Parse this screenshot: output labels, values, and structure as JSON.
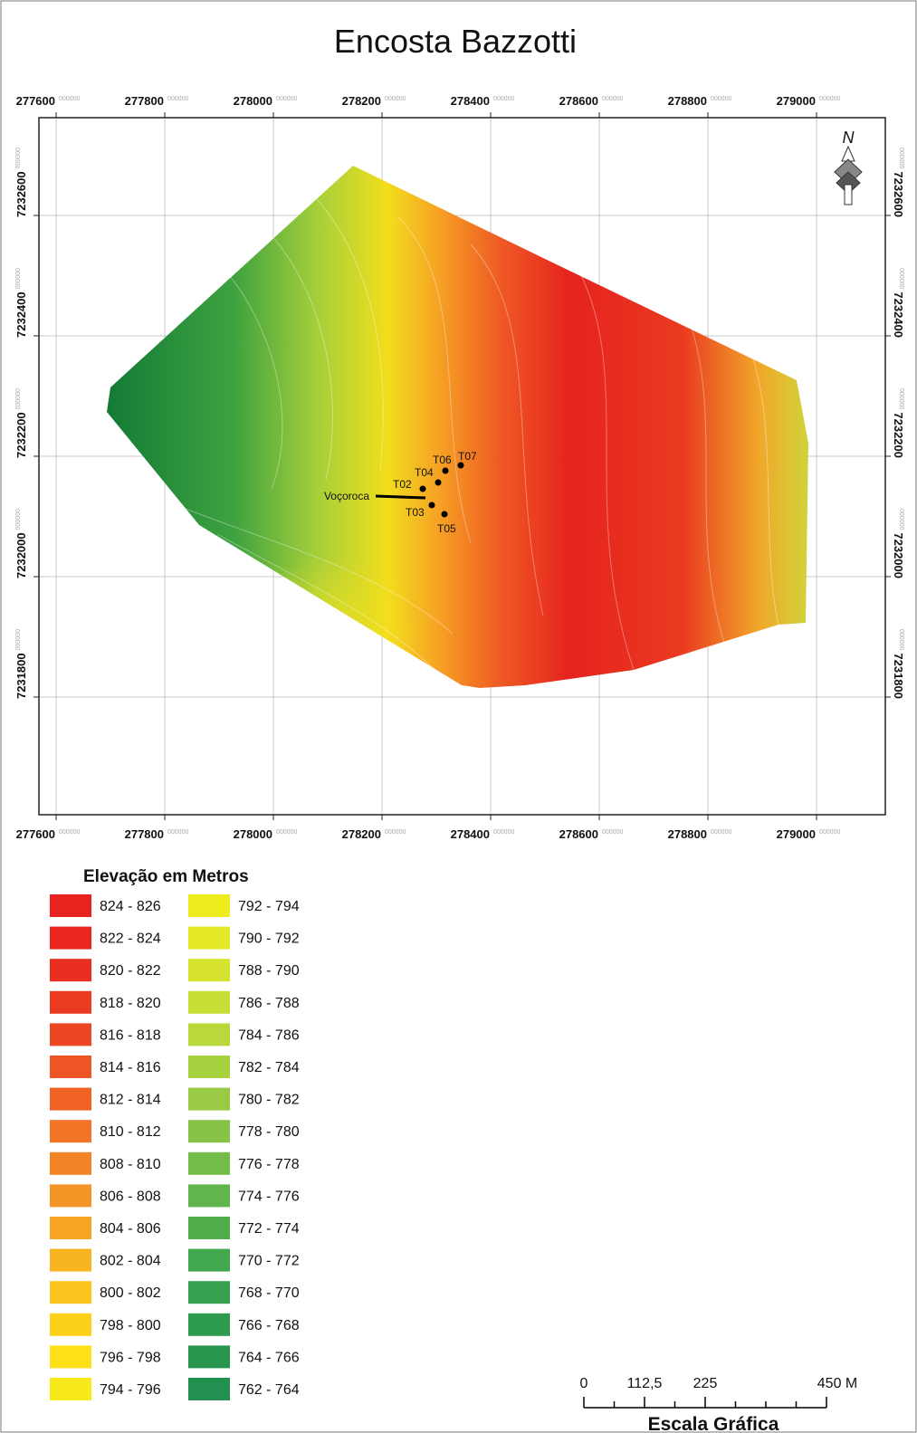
{
  "title": "Encosta Bazzotti",
  "map": {
    "x_ticks": [
      {
        "label": "277600",
        "suffix": "000000"
      },
      {
        "label": "277800",
        "suffix": "000000"
      },
      {
        "label": "278000",
        "suffix": "000000"
      },
      {
        "label": "278200",
        "suffix": "000000"
      },
      {
        "label": "278400",
        "suffix": "000000"
      },
      {
        "label": "278600",
        "suffix": "000000"
      },
      {
        "label": "278800",
        "suffix": "000000"
      },
      {
        "label": "279000",
        "suffix": "000000"
      }
    ],
    "y_ticks": [
      {
        "label": "7232600",
        "suffix": "000000"
      },
      {
        "label": "7232400",
        "suffix": "000000"
      },
      {
        "label": "7232200",
        "suffix": "000000"
      },
      {
        "label": "7232000",
        "suffix": "000000"
      },
      {
        "label": "7231800",
        "suffix": "000000"
      }
    ],
    "points": [
      {
        "label": "T06"
      },
      {
        "label": "T07"
      },
      {
        "label": "T04"
      },
      {
        "label": "T02"
      },
      {
        "label": "T03"
      },
      {
        "label": "T05"
      }
    ],
    "feature_label": "Voçoroca",
    "north": "N"
  },
  "legend": {
    "title": "Elevação em Metros",
    "items": [
      {
        "label": "824 - 826",
        "color": "#e8231f"
      },
      {
        "label": "822 - 824",
        "color": "#e9261f"
      },
      {
        "label": "820 - 822",
        "color": "#ea2e20"
      },
      {
        "label": "818 - 820",
        "color": "#eb3a22"
      },
      {
        "label": "816 - 818",
        "color": "#ec4723"
      },
      {
        "label": "814 - 816",
        "color": "#ee5524"
      },
      {
        "label": "812 - 814",
        "color": "#f06325"
      },
      {
        "label": "810 - 812",
        "color": "#f27426"
      },
      {
        "label": "808 - 810",
        "color": "#f38426"
      },
      {
        "label": "806 - 808",
        "color": "#f59426"
      },
      {
        "label": "804 - 806",
        "color": "#f7a424"
      },
      {
        "label": "802 - 804",
        "color": "#f9b421"
      },
      {
        "label": "800 - 802",
        "color": "#fbc41d"
      },
      {
        "label": "798 - 800",
        "color": "#fdd11a"
      },
      {
        "label": "796 - 798",
        "color": "#fde018"
      },
      {
        "label": "794 - 796",
        "color": "#f8e91a"
      },
      {
        "label": "792 - 794",
        "color": "#efec1e"
      },
      {
        "label": "790 - 792",
        "color": "#e4e826"
      },
      {
        "label": "788 - 790",
        "color": "#d6e32e"
      },
      {
        "label": "786 - 788",
        "color": "#c8de36"
      },
      {
        "label": "784 - 786",
        "color": "#b9d83c"
      },
      {
        "label": "782 - 784",
        "color": "#a8d140"
      },
      {
        "label": "780 - 782",
        "color": "#98ca44"
      },
      {
        "label": "778 - 780",
        "color": "#86c347"
      },
      {
        "label": "776 - 778",
        "color": "#74bc4a"
      },
      {
        "label": "774 - 776",
        "color": "#62b54c"
      },
      {
        "label": "772 - 774",
        "color": "#50ae4d"
      },
      {
        "label": "770 - 772",
        "color": "#42a84e"
      },
      {
        "label": "768 - 770",
        "color": "#36a24f"
      },
      {
        "label": "766 - 768",
        "color": "#2e9c4f"
      },
      {
        "label": "764 - 766",
        "color": "#28964f"
      },
      {
        "label": "762 - 764",
        "color": "#22904e"
      }
    ]
  },
  "scale_bar": {
    "labels": [
      "0",
      "112,5",
      "225",
      "450 M"
    ],
    "title": "Escala Gráfica"
  }
}
